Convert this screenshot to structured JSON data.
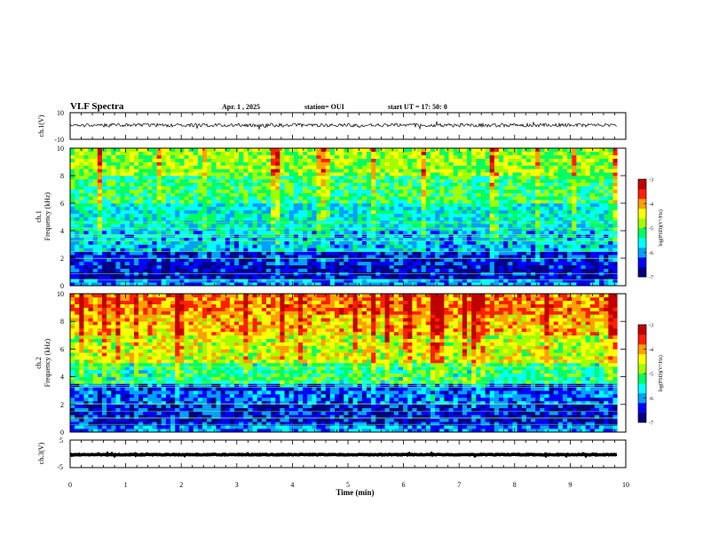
{
  "header": {
    "title": "VLF Spectra",
    "date": "Apr. 1  , 2025",
    "station": "station= OUI",
    "start": "start  UT  =   17: 50: 0"
  },
  "chart_data": [
    {
      "type": "line",
      "name": "ch1-waveform",
      "ylabel": "ch.1(V)",
      "ylim": [
        -10,
        10
      ],
      "yticks": [
        "10",
        "-10"
      ],
      "xlim": [
        0,
        10
      ],
      "color": "#000000",
      "baseline_v": 0.6
    },
    {
      "type": "heatmap",
      "name": "ch1-spectrogram",
      "ylabel": "ch.1\nFrequency  (kHz)",
      "ylim": [
        0,
        10
      ],
      "yticks": [
        "0",
        "2",
        "4",
        "6",
        "8",
        "10"
      ],
      "xlim": [
        0,
        9.85
      ],
      "colorbar": {
        "label": "log(PSD)(V²/Hz)",
        "ticks": [
          "-3",
          "-4",
          "-5",
          "-6",
          "-7"
        ],
        "range": [
          -7,
          -3
        ],
        "colors": [
          "#000080",
          "#0000ff",
          "#00a0ff",
          "#00ffff",
          "#00ff60",
          "#a0ff00",
          "#ffff00",
          "#ffa000",
          "#ff2000",
          "#c00000",
          "#ffffff"
        ]
      },
      "band_levels": [
        {
          "f": [
            0,
            0.5
          ],
          "level": -6.0
        },
        {
          "f": [
            0.5,
            1.5
          ],
          "level": -6.6
        },
        {
          "f": [
            1.5,
            2.6
          ],
          "level": -6.4
        },
        {
          "f": [
            2.6,
            4.0
          ],
          "level": -5.8
        },
        {
          "f": [
            4.0,
            6.0
          ],
          "level": -5.6
        },
        {
          "f": [
            6.0,
            8.0
          ],
          "level": -5.2
        },
        {
          "f": [
            8.0,
            10.0
          ],
          "level": -4.8
        }
      ]
    },
    {
      "type": "heatmap",
      "name": "ch2-spectrogram",
      "ylabel": "ch.2\nFrequency  (kHz)",
      "ylim": [
        0,
        10
      ],
      "yticks": [
        "0",
        "2",
        "4",
        "6",
        "8",
        "10"
      ],
      "xlim": [
        0,
        9.85
      ],
      "colorbar": {
        "label": "log(PSD)(V²/Hz)",
        "ticks": [
          "-3",
          "-4",
          "-5",
          "-6",
          "-7"
        ],
        "range": [
          -7,
          -3
        ],
        "colors": [
          "#000080",
          "#0000ff",
          "#00a0ff",
          "#00ffff",
          "#00ff60",
          "#a0ff00",
          "#ffff00",
          "#ffa000",
          "#ff2000",
          "#c00000",
          "#ffffff"
        ]
      },
      "band_levels": [
        {
          "f": [
            0,
            0.5
          ],
          "level": -6.0
        },
        {
          "f": [
            0.5,
            2.0
          ],
          "level": -6.5
        },
        {
          "f": [
            2.0,
            3.5
          ],
          "level": -6.2
        },
        {
          "f": [
            3.5,
            5.0
          ],
          "level": -5.3
        },
        {
          "f": [
            5.0,
            7.0
          ],
          "level": -4.6
        },
        {
          "f": [
            7.0,
            8.5
          ],
          "level": -4.2
        },
        {
          "f": [
            8.5,
            10.0
          ],
          "level": -3.9
        }
      ]
    },
    {
      "type": "line",
      "name": "ch3-waveform",
      "ylabel": "ch.3(V)",
      "ylim": [
        -5,
        5
      ],
      "yticks": [
        "5",
        "0",
        "-5"
      ],
      "xlim": [
        0,
        10
      ],
      "xlabel": "Time  (min)",
      "xticks": [
        "0",
        "1",
        "2",
        "3",
        "4",
        "5",
        "6",
        "7",
        "8",
        "9",
        "10"
      ],
      "color": "#000000",
      "baseline_v": -0.3
    }
  ]
}
